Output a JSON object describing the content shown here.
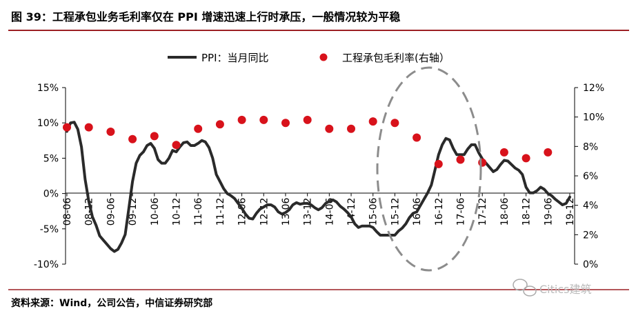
{
  "figure": {
    "title": "图 39：工程承包业务毛利率仅在 PPI 增速迅速上行时承压，一般情况较为平稳",
    "source": "资料来源：Wind，公司公告，中信证券研究部",
    "watermark": "Citics建筑"
  },
  "colors": {
    "rule": "#9c1f24",
    "ppi_line": "#2a2a2a",
    "margin_dots": "#d8121b",
    "ellipse": "#8c8c8c",
    "axis": "#000000"
  },
  "chart_data": {
    "type": "line",
    "legend": {
      "position": "top",
      "items": [
        "PPI：当月同比",
        "工程承包毛利率(右轴）"
      ]
    },
    "x_tick_labels": [
      "08-06",
      "08-12",
      "09-06",
      "09-12",
      "10-06",
      "10-12",
      "11-06",
      "11-12",
      "12-06",
      "12-12",
      "13-06",
      "13-12",
      "14-06",
      "14-12",
      "15-06",
      "15-12",
      "16-06",
      "16-12",
      "17-06",
      "17-12",
      "18-06",
      "18-12",
      "19-06",
      "19-12"
    ],
    "y_left": {
      "ticks": [
        "15%",
        "10%",
        "5%",
        "0%",
        "-5%",
        "-10%"
      ],
      "range": [
        -10,
        15
      ]
    },
    "y_right": {
      "ticks": [
        "12%",
        "10%",
        "8%",
        "6%",
        "4%",
        "2%",
        "0%"
      ],
      "range": [
        0,
        12
      ]
    },
    "grid": false,
    "series": [
      {
        "name": "PPI：当月同比",
        "axis": "left",
        "style": "line",
        "points": [
          [
            "2008-06",
            8.8
          ],
          [
            "2008-07",
            10.0
          ],
          [
            "2008-08",
            10.1
          ],
          [
            "2008-09",
            9.1
          ],
          [
            "2008-10",
            6.6
          ],
          [
            "2008-11",
            2.0
          ],
          [
            "2008-12",
            -1.1
          ],
          [
            "2009-01",
            -3.3
          ],
          [
            "2009-02",
            -4.5
          ],
          [
            "2009-03",
            -6.0
          ],
          [
            "2009-04",
            -6.6
          ],
          [
            "2009-05",
            -7.2
          ],
          [
            "2009-06",
            -7.8
          ],
          [
            "2009-07",
            -8.2
          ],
          [
            "2009-08",
            -7.9
          ],
          [
            "2009-09",
            -7.0
          ],
          [
            "2009-10",
            -5.8
          ],
          [
            "2009-11",
            -2.1
          ],
          [
            "2009-12",
            1.7
          ],
          [
            "2010-01",
            4.3
          ],
          [
            "2010-02",
            5.4
          ],
          [
            "2010-03",
            5.9
          ],
          [
            "2010-04",
            6.8
          ],
          [
            "2010-05",
            7.1
          ],
          [
            "2010-06",
            6.4
          ],
          [
            "2010-07",
            4.8
          ],
          [
            "2010-08",
            4.3
          ],
          [
            "2010-09",
            4.3
          ],
          [
            "2010-10",
            5.0
          ],
          [
            "2010-11",
            6.1
          ],
          [
            "2010-12",
            5.9
          ],
          [
            "2011-01",
            6.6
          ],
          [
            "2011-02",
            7.2
          ],
          [
            "2011-03",
            7.3
          ],
          [
            "2011-04",
            6.8
          ],
          [
            "2011-05",
            6.8
          ],
          [
            "2011-06",
            7.1
          ],
          [
            "2011-07",
            7.5
          ],
          [
            "2011-08",
            7.3
          ],
          [
            "2011-09",
            6.5
          ],
          [
            "2011-10",
            5.0
          ],
          [
            "2011-11",
            2.7
          ],
          [
            "2011-12",
            1.7
          ],
          [
            "2012-01",
            0.7
          ],
          [
            "2012-02",
            0.0
          ],
          [
            "2012-03",
            -0.3
          ],
          [
            "2012-04",
            -0.7
          ],
          [
            "2012-05",
            -1.4
          ],
          [
            "2012-06",
            -2.1
          ],
          [
            "2012-07",
            -2.9
          ],
          [
            "2012-08",
            -3.5
          ],
          [
            "2012-09",
            -3.6
          ],
          [
            "2012-10",
            -2.8
          ],
          [
            "2012-11",
            -2.2
          ],
          [
            "2012-12",
            -1.9
          ],
          [
            "2013-01",
            -1.6
          ],
          [
            "2013-02",
            -1.6
          ],
          [
            "2013-03",
            -1.9
          ],
          [
            "2013-04",
            -2.6
          ],
          [
            "2013-05",
            -2.9
          ],
          [
            "2013-06",
            -2.7
          ],
          [
            "2013-07",
            -2.3
          ],
          [
            "2013-08",
            -1.6
          ],
          [
            "2013-09",
            -1.3
          ],
          [
            "2013-10",
            -1.5
          ],
          [
            "2013-11",
            -1.4
          ],
          [
            "2013-12",
            -1.4
          ],
          [
            "2014-01",
            -1.6
          ],
          [
            "2014-02",
            -2.0
          ],
          [
            "2014-03",
            -2.3
          ],
          [
            "2014-04",
            -2.0
          ],
          [
            "2014-05",
            -1.4
          ],
          [
            "2014-06",
            -1.1
          ],
          [
            "2014-07",
            -0.9
          ],
          [
            "2014-08",
            -1.2
          ],
          [
            "2014-09",
            -1.8
          ],
          [
            "2014-10",
            -2.2
          ],
          [
            "2014-11",
            -2.7
          ],
          [
            "2014-12",
            -3.3
          ],
          [
            "2015-01",
            -4.3
          ],
          [
            "2015-02",
            -4.8
          ],
          [
            "2015-03",
            -4.6
          ],
          [
            "2015-04",
            -4.6
          ],
          [
            "2015-05",
            -4.6
          ],
          [
            "2015-06",
            -4.8
          ],
          [
            "2015-07",
            -5.4
          ],
          [
            "2015-08",
            -5.9
          ],
          [
            "2015-09",
            -5.9
          ],
          [
            "2015-10",
            -5.9
          ],
          [
            "2015-11",
            -5.9
          ],
          [
            "2015-12",
            -5.9
          ],
          [
            "2016-01",
            -5.3
          ],
          [
            "2016-02",
            -4.9
          ],
          [
            "2016-03",
            -4.3
          ],
          [
            "2016-04",
            -3.4
          ],
          [
            "2016-05",
            -2.8
          ],
          [
            "2016-06",
            -2.6
          ],
          [
            "2016-07",
            -1.7
          ],
          [
            "2016-08",
            -0.8
          ],
          [
            "2016-09",
            0.1
          ],
          [
            "2016-10",
            1.2
          ],
          [
            "2016-11",
            3.3
          ],
          [
            "2016-12",
            5.5
          ],
          [
            "2017-01",
            6.9
          ],
          [
            "2017-02",
            7.8
          ],
          [
            "2017-03",
            7.6
          ],
          [
            "2017-04",
            6.4
          ],
          [
            "2017-05",
            5.5
          ],
          [
            "2017-06",
            5.5
          ],
          [
            "2017-07",
            5.5
          ],
          [
            "2017-08",
            6.3
          ],
          [
            "2017-09",
            6.9
          ],
          [
            "2017-10",
            6.9
          ],
          [
            "2017-11",
            5.8
          ],
          [
            "2017-12",
            4.9
          ],
          [
            "2018-01",
            4.3
          ],
          [
            "2018-02",
            3.7
          ],
          [
            "2018-03",
            3.1
          ],
          [
            "2018-04",
            3.4
          ],
          [
            "2018-05",
            4.1
          ],
          [
            "2018-06",
            4.7
          ],
          [
            "2018-07",
            4.6
          ],
          [
            "2018-08",
            4.1
          ],
          [
            "2018-09",
            3.6
          ],
          [
            "2018-10",
            3.3
          ],
          [
            "2018-11",
            2.7
          ],
          [
            "2018-12",
            0.9
          ],
          [
            "2019-01",
            0.1
          ],
          [
            "2019-02",
            0.1
          ],
          [
            "2019-03",
            0.4
          ],
          [
            "2019-04",
            0.9
          ],
          [
            "2019-05",
            0.6
          ],
          [
            "2019-06",
            0.0
          ],
          [
            "2019-07",
            -0.3
          ],
          [
            "2019-08",
            -0.8
          ],
          [
            "2019-09",
            -1.2
          ],
          [
            "2019-10",
            -1.6
          ],
          [
            "2019-11",
            -1.4
          ],
          [
            "2019-12",
            -0.5
          ]
        ]
      },
      {
        "name": "工程承包毛利率(右轴）",
        "axis": "right",
        "style": "dots",
        "points": [
          [
            "2008-06",
            9.3
          ],
          [
            "2008-12",
            9.3
          ],
          [
            "2009-06",
            9.0
          ],
          [
            "2009-12",
            8.5
          ],
          [
            "2010-06",
            8.7
          ],
          [
            "2010-12",
            8.1
          ],
          [
            "2011-06",
            9.2
          ],
          [
            "2011-12",
            9.5
          ],
          [
            "2012-06",
            9.8
          ],
          [
            "2012-12",
            9.8
          ],
          [
            "2013-06",
            9.6
          ],
          [
            "2013-12",
            9.8
          ],
          [
            "2014-06",
            9.2
          ],
          [
            "2014-12",
            9.2
          ],
          [
            "2015-06",
            9.7
          ],
          [
            "2015-12",
            9.6
          ],
          [
            "2016-06",
            8.6
          ],
          [
            "2016-12",
            6.8
          ],
          [
            "2017-06",
            7.1
          ],
          [
            "2017-12",
            6.9
          ],
          [
            "2018-06",
            7.6
          ],
          [
            "2018-12",
            7.2
          ],
          [
            "2019-06",
            7.6
          ]
        ]
      }
    ]
  }
}
